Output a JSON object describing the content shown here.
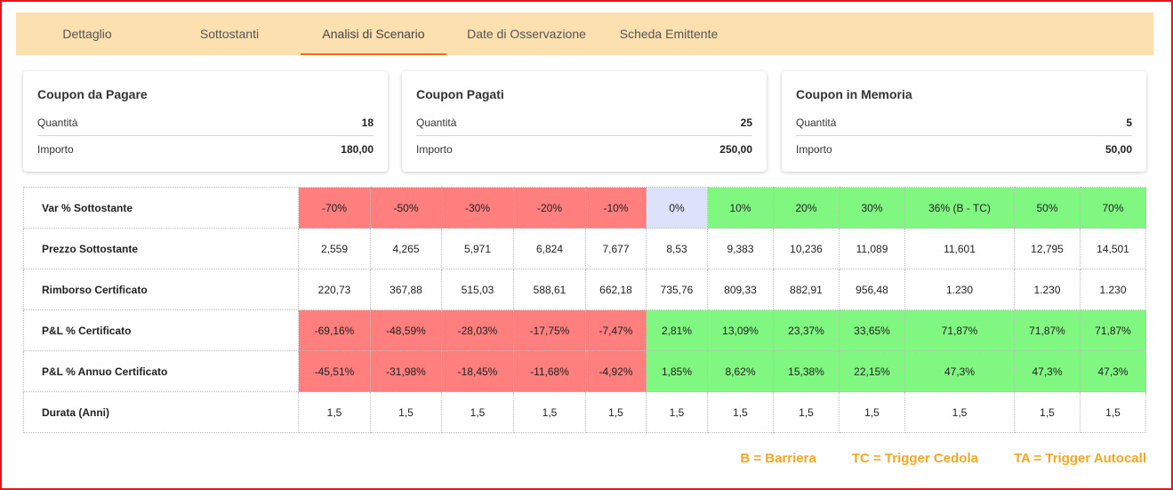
{
  "tabs": [
    {
      "label": "Dettaglio"
    },
    {
      "label": "Sottostanti"
    },
    {
      "label": "Analisi di Scenario"
    },
    {
      "label": "Date di Osservazione"
    },
    {
      "label": "Scheda Emittente"
    }
  ],
  "cards": [
    {
      "title": "Coupon da Pagare",
      "qty_label": "Quantità",
      "qty": "18",
      "amount_label": "Importo",
      "amount": "180,00"
    },
    {
      "title": "Coupon Pagati",
      "qty_label": "Quantità",
      "qty": "25",
      "amount_label": "Importo",
      "amount": "250,00"
    },
    {
      "title": "Coupon in Memoria",
      "qty_label": "Quantità",
      "qty": "5",
      "amount_label": "Importo",
      "amount": "50,00"
    }
  ],
  "table": {
    "rows": [
      {
        "label": "Var % Sottostante",
        "cells": [
          "-70%",
          "-50%",
          "-30%",
          "-20%",
          "-10%",
          "0%",
          "10%",
          "20%",
          "30%",
          "36% (B - TC)",
          "50%",
          "70%"
        ],
        "colors": [
          "red",
          "red",
          "red",
          "red",
          "red",
          "blue",
          "green",
          "green",
          "green",
          "green",
          "green",
          "green"
        ]
      },
      {
        "label": "Prezzo Sottostante",
        "cells": [
          "2,559",
          "4,265",
          "5,971",
          "6,824",
          "7,677",
          "8,53",
          "9,383",
          "10,236",
          "11,089",
          "11,601",
          "12,795",
          "14,501"
        ],
        "colors": [
          "",
          "",
          "",
          "",
          "",
          "",
          "",
          "",
          "",
          "",
          "",
          ""
        ]
      },
      {
        "label": "Rimborso Certificato",
        "cells": [
          "220,73",
          "367,88",
          "515,03",
          "588,61",
          "662,18",
          "735,76",
          "809,33",
          "882,91",
          "956,48",
          "1.230",
          "1.230",
          "1.230"
        ],
        "colors": [
          "",
          "",
          "",
          "",
          "",
          "",
          "",
          "",
          "",
          "",
          "",
          ""
        ]
      },
      {
        "label": "P&L % Certificato",
        "cells": [
          "-69,16%",
          "-48,59%",
          "-28,03%",
          "-17,75%",
          "-7,47%",
          "2,81%",
          "13,09%",
          "23,37%",
          "33,65%",
          "71,87%",
          "71,87%",
          "71,87%"
        ],
        "colors": [
          "red",
          "red",
          "red",
          "red",
          "red",
          "green",
          "green",
          "green",
          "green",
          "green",
          "green",
          "green"
        ]
      },
      {
        "label": "P&L % Annuo Certificato",
        "cells": [
          "-45,51%",
          "-31,98%",
          "-18,45%",
          "-11,68%",
          "-4,92%",
          "1,85%",
          "8,62%",
          "15,38%",
          "22,15%",
          "47,3%",
          "47,3%",
          "47,3%"
        ],
        "colors": [
          "red",
          "red",
          "red",
          "red",
          "red",
          "green",
          "green",
          "green",
          "green",
          "green",
          "green",
          "green"
        ]
      },
      {
        "label": "Durata (Anni)",
        "cells": [
          "1,5",
          "1,5",
          "1,5",
          "1,5",
          "1,5",
          "1,5",
          "1,5",
          "1,5",
          "1,5",
          "1,5",
          "1,5",
          "1,5"
        ],
        "colors": [
          "",
          "",
          "",
          "",
          "",
          "",
          "",
          "",
          "",
          "",
          "",
          ""
        ]
      }
    ]
  },
  "legend": [
    {
      "text": "B = Barriera"
    },
    {
      "text": "TC = Trigger Cedola"
    },
    {
      "text": "TA = Trigger Autocall"
    }
  ],
  "colors": {
    "tabbar": "#fde0b0",
    "tab_indicator": "#f26a21",
    "negative": "#ff7f7f",
    "positive": "#80f780",
    "neutral": "#dde2fb",
    "legend": "#f5a623",
    "frame": "#e0161b"
  }
}
